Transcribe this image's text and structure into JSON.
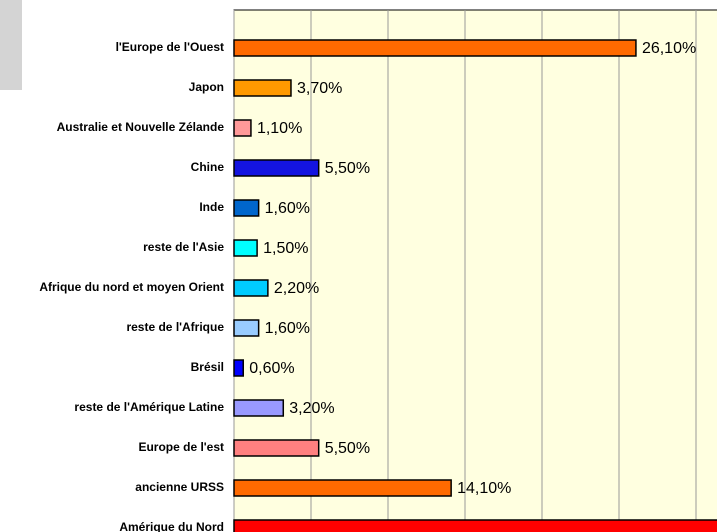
{
  "chart_data": {
    "type": "bar",
    "orientation": "horizontal",
    "categories": [
      "l'Europe de l'Ouest",
      "Japon",
      "Australie et Nouvelle Zélande",
      "Chine",
      "Inde",
      "reste de l'Asie",
      "Afrique du nord et moyen Orient",
      "reste de l'Afrique",
      "Brésil",
      "reste de l'Amérique Latine",
      "Europe de l'est",
      "ancienne URSS",
      "Amérique du Nord"
    ],
    "values": [
      26.1,
      3.7,
      1.1,
      5.5,
      1.6,
      1.5,
      2.2,
      1.6,
      0.6,
      3.2,
      5.5,
      14.1,
      34
    ],
    "value_labels": [
      "26,10%",
      "3,70%",
      "1,10%",
      "5,50%",
      "1,60%",
      "1,50%",
      "2,20%",
      "1,60%",
      "0,60%",
      "3,20%",
      "5,50%",
      "14,10%",
      null
    ],
    "colors": [
      "#ff6a00",
      "#ff9900",
      "#ff9999",
      "#1414e0",
      "#0066cc",
      "#00ffff",
      "#00ccff",
      "#99ccff",
      "#0000ff",
      "#9999ff",
      "#ff8080",
      "#ff6a00",
      "#ff0000"
    ],
    "xlim": [
      0,
      35
    ],
    "xticks": [
      0,
      5,
      10,
      15,
      20,
      25,
      30,
      35
    ],
    "grid": true
  }
}
